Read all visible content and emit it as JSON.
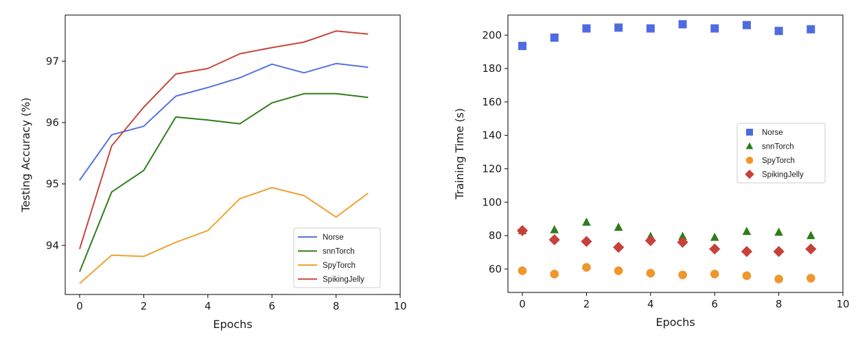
{
  "chart_data": [
    {
      "type": "line",
      "title": "",
      "xlabel": "Epochs",
      "ylabel": "Testing Accuracy (%)",
      "xlim": [
        -0.45,
        10
      ],
      "ylim": [
        93.2,
        97.75
      ],
      "xticks": [
        "0",
        "2",
        "4",
        "6",
        "8",
        "10"
      ],
      "yticks": [
        "94",
        "95",
        "96",
        "97"
      ],
      "legend_position": "lower-right",
      "x": [
        0,
        1,
        2,
        3,
        4,
        5,
        6,
        7,
        8,
        9
      ],
      "series": [
        {
          "name": "Norse",
          "color": "#5470e0",
          "values": [
            95.06,
            95.8,
            95.94,
            96.43,
            96.57,
            96.73,
            96.95,
            96.81,
            96.96,
            96.9
          ]
        },
        {
          "name": "snnTorch",
          "color": "#2e7d1a",
          "values": [
            93.57,
            94.87,
            95.22,
            96.09,
            96.04,
            95.98,
            96.32,
            96.47,
            96.47,
            96.41
          ]
        },
        {
          "name": "SpyTorch",
          "color": "#f0a030",
          "values": [
            93.38,
            93.84,
            93.82,
            94.05,
            94.24,
            94.76,
            94.94,
            94.81,
            94.46,
            94.85
          ]
        },
        {
          "name": "SpikingJelly",
          "color": "#c8453a",
          "values": [
            93.94,
            95.62,
            96.25,
            96.79,
            96.88,
            97.12,
            97.22,
            97.31,
            97.49,
            97.44
          ]
        }
      ]
    },
    {
      "type": "scatter",
      "title": "",
      "xlabel": "Epochs",
      "ylabel": "Training Time (s)",
      "xlim": [
        -0.45,
        10
      ],
      "ylim": [
        46,
        212
      ],
      "xticks": [
        "0",
        "2",
        "4",
        "6",
        "8",
        "10"
      ],
      "yticks": [
        "60",
        "80",
        "100",
        "120",
        "140",
        "160",
        "180",
        "200"
      ],
      "legend_position": "center-right",
      "x": [
        0,
        1,
        2,
        3,
        4,
        5,
        6,
        7,
        8,
        9
      ],
      "series": [
        {
          "name": "Norse",
          "color": "#4f6be0",
          "marker": "square",
          "values": [
            193.5,
            198.5,
            204,
            204.5,
            204,
            206.5,
            204,
            206,
            202.5,
            203.5
          ]
        },
        {
          "name": "snnTorch",
          "color": "#2e7d1a",
          "marker": "triangle",
          "values": [
            83,
            83.5,
            88,
            85,
            79.5,
            79.5,
            79,
            82.5,
            82,
            80
          ]
        },
        {
          "name": "SpyTorch",
          "color": "#f0962a",
          "marker": "circle",
          "values": [
            59,
            57,
            61,
            59,
            57.5,
            56.5,
            57,
            56,
            54,
            54.5
          ]
        },
        {
          "name": "SpikingJelly",
          "color": "#c8403a",
          "marker": "diamond",
          "values": [
            83,
            77.5,
            76.5,
            73,
            77,
            76,
            72,
            70.5,
            70.5,
            72
          ]
        }
      ]
    }
  ]
}
